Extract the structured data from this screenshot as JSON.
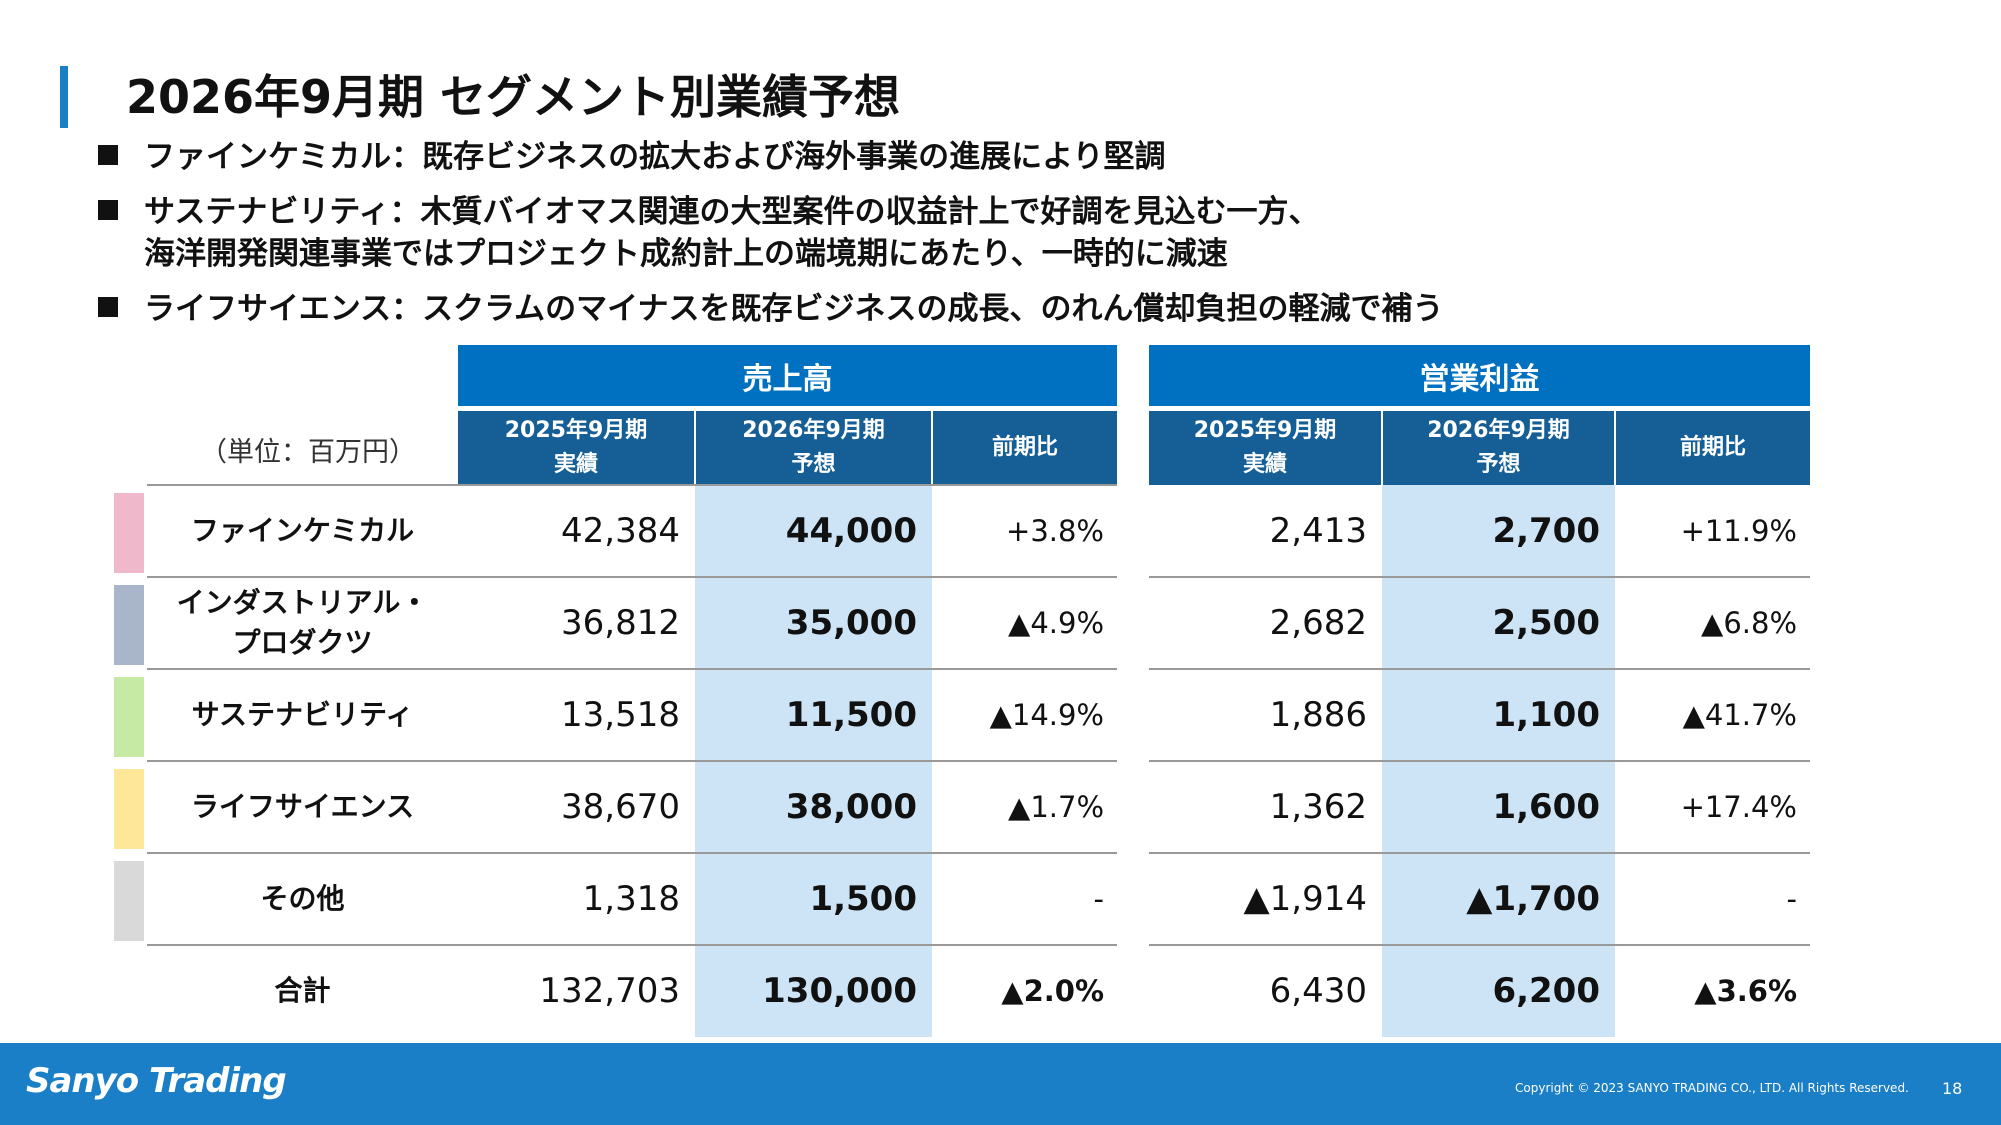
{
  "title": "2026年9月期 セグメント別業績予想",
  "bullets": [
    {
      "text": "ファインケミカル：既存ビジネスの拡大および海外事業の進展により堅調"
    },
    {
      "text": "サステナビリティ：木質バイオマス関連の大型案件の収益計上で好調を見込む一方、",
      "cont": "海洋開発関連事業ではプロジェクト成約計上の端境期にあたり、一時的に減速"
    },
    {
      "text": "ライフサイエンス：スクラムのマイナスを既存ビジネスの成長、のれん償却負担の軽減で補う"
    }
  ],
  "unit": "（単位：百万円）",
  "groups": {
    "sales": "売上高",
    "op": "営業利益"
  },
  "cols": {
    "actual1": "2025年9月期",
    "actual2": "実績",
    "fc1": "2026年9月期",
    "fc2": "予想",
    "yoy": "前期比"
  },
  "rows": [
    {
      "label": "ファインケミカル",
      "color": "#f0b8cb",
      "s1": "42,384",
      "s2": "44,000",
      "sy": "+3.8%",
      "o1": "2,413",
      "o2": "2,700",
      "oy": "+11.9%"
    },
    {
      "label": "インダストリアル・",
      "label2": "プロダクツ",
      "color": "#a9b5c9",
      "s1": "36,812",
      "s2": "35,000",
      "sy": "▲4.9%",
      "o1": "2,682",
      "o2": "2,500",
      "oy": "▲6.8%"
    },
    {
      "label": "サステナビリティ",
      "color": "#c6e9a4",
      "s1": "13,518",
      "s2": "11,500",
      "sy": "▲14.9%",
      "o1": "1,886",
      "o2": "1,100",
      "oy": "▲41.7%"
    },
    {
      "label": "ライフサイエンス",
      "color": "#fde89a",
      "s1": "38,670",
      "s2": "38,000",
      "sy": "▲1.7%",
      "o1": "1,362",
      "o2": "1,600",
      "oy": "+17.4%"
    },
    {
      "label": "その他",
      "color": "#d9d9d9",
      "s1": "1,318",
      "s2": "1,500",
      "sy": "-",
      "o1": "▲1,914",
      "o2": "▲1,700",
      "oy": "-"
    },
    {
      "label": "合計",
      "color": "",
      "s1": "132,703",
      "s2": "130,000",
      "sy": "▲2.0%",
      "o1": "6,430",
      "o2": "6,200",
      "oy": "▲3.6%"
    }
  ],
  "footer": {
    "logo": "Sanyo Trading",
    "copyright": "Copyright © 2023 SANYO TRADING CO., LTD. All Rights Reserved.",
    "page": "18"
  }
}
